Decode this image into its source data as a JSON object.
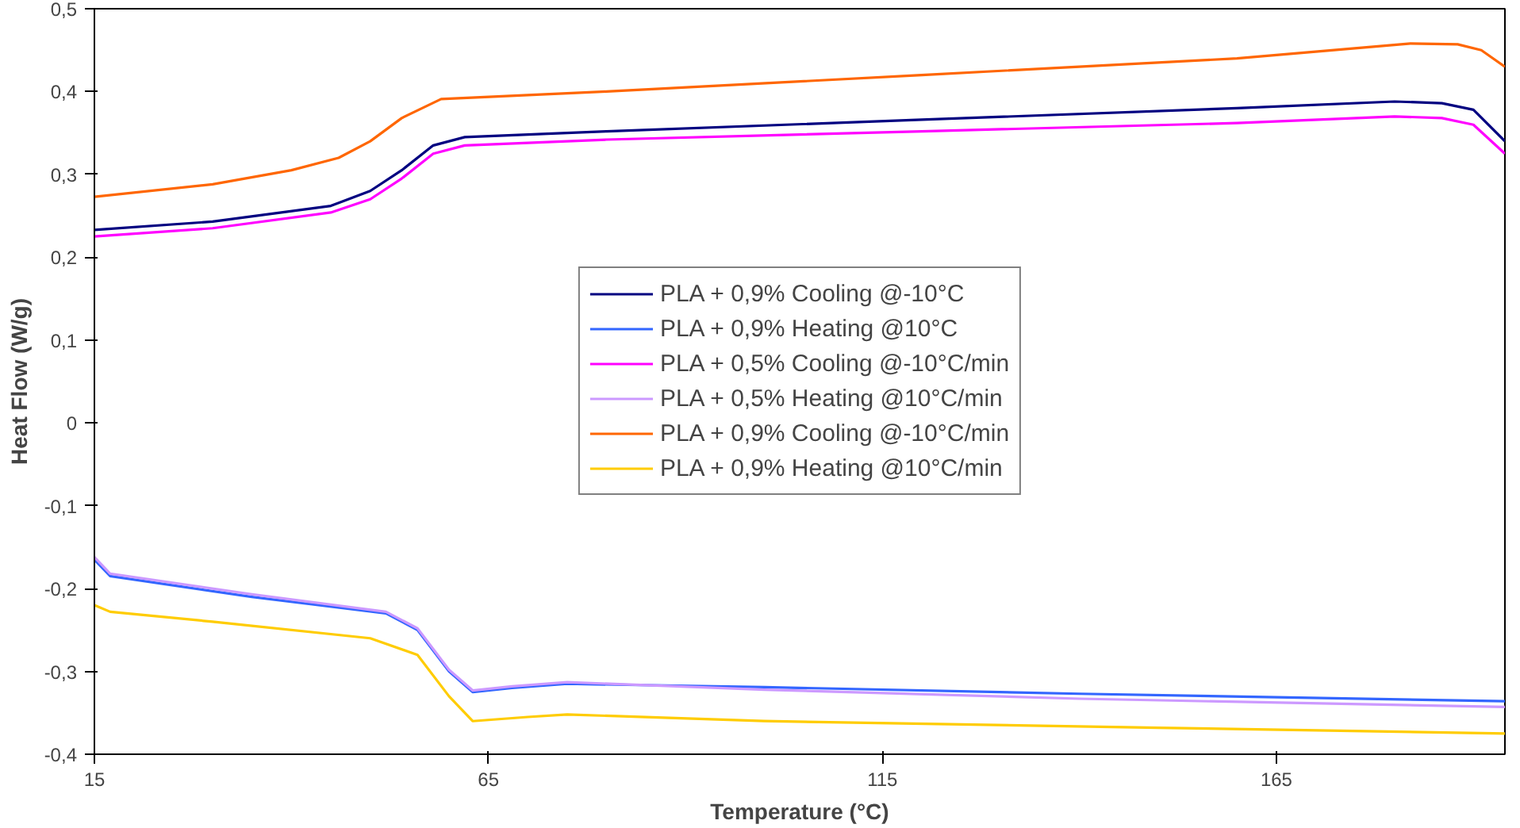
{
  "chart_data": {
    "type": "line",
    "xlabel": "Temperature (°C)",
    "ylabel": "Heat Flow (W/g)",
    "xlim": [
      15,
      194
    ],
    "xticks": [
      15,
      65,
      115,
      165
    ],
    "ylim": [
      -0.4,
      0.5
    ],
    "yticks": [
      {
        "value": -0.4,
        "label": "-0,4"
      },
      {
        "value": -0.3,
        "label": "-0,3"
      },
      {
        "value": -0.2,
        "label": "-0,2"
      },
      {
        "value": -0.1,
        "label": "-0,1"
      },
      {
        "value": 0,
        "label": "0"
      },
      {
        "value": 0.1,
        "label": "0,1"
      },
      {
        "value": 0.2,
        "label": "0,2"
      },
      {
        "value": 0.3,
        "label": "0,3"
      },
      {
        "value": 0.4,
        "label": "0,4"
      },
      {
        "value": 0.5,
        "label": "0,5"
      }
    ],
    "grid": false,
    "legend": "center",
    "marker": "none",
    "line_style": "solid",
    "series": [
      {
        "name": "PLA + 0,9% Cooling @-10°C",
        "color": "#000080",
        "x": [
          15,
          30,
          45,
          50,
          54,
          58,
          62,
          80,
          120,
          160,
          180,
          186,
          190,
          194
        ],
        "values": [
          0.233,
          0.243,
          0.262,
          0.28,
          0.305,
          0.335,
          0.345,
          0.352,
          0.366,
          0.38,
          0.388,
          0.386,
          0.378,
          0.34
        ]
      },
      {
        "name": "PLA + 0,9% Heating @10°C",
        "color": "#3366ff",
        "x": [
          15,
          17,
          35,
          52,
          56,
          60,
          63,
          68,
          75,
          100,
          140,
          194
        ],
        "values": [
          -0.165,
          -0.185,
          -0.21,
          -0.23,
          -0.25,
          -0.3,
          -0.325,
          -0.32,
          -0.315,
          -0.319,
          -0.327,
          -0.336
        ]
      },
      {
        "name": "PLA + 0,5% Cooling @-10°C/min",
        "color": "#ff00ff",
        "x": [
          15,
          30,
          45,
          50,
          54,
          58,
          62,
          80,
          120,
          160,
          180,
          186,
          190,
          194
        ],
        "values": [
          0.225,
          0.235,
          0.254,
          0.27,
          0.295,
          0.325,
          0.335,
          0.342,
          0.352,
          0.362,
          0.37,
          0.368,
          0.36,
          0.325
        ]
      },
      {
        "name": "PLA + 0,5% Heating @10°C/min",
        "color": "#cc99ff",
        "x": [
          15,
          17,
          35,
          52,
          56,
          60,
          63,
          68,
          75,
          100,
          140,
          194
        ],
        "values": [
          -0.162,
          -0.182,
          -0.207,
          -0.228,
          -0.248,
          -0.298,
          -0.323,
          -0.318,
          -0.313,
          -0.322,
          -0.333,
          -0.343
        ]
      },
      {
        "name": "PLA + 0,9% Cooling @-10°C/min",
        "color": "#ff6600",
        "x": [
          15,
          30,
          40,
          46,
          50,
          54,
          59,
          80,
          120,
          160,
          182,
          188,
          191,
          194
        ],
        "values": [
          0.273,
          0.288,
          0.305,
          0.32,
          0.34,
          0.368,
          0.391,
          0.4,
          0.42,
          0.44,
          0.458,
          0.457,
          0.45,
          0.43
        ]
      },
      {
        "name": "PLA + 0,9% Heating @10°C/min",
        "color": "#ffcc00",
        "x": [
          15,
          17,
          30,
          50,
          56,
          60,
          63,
          70,
          75,
          100,
          150,
          194
        ],
        "values": [
          -0.22,
          -0.228,
          -0.24,
          -0.26,
          -0.28,
          -0.33,
          -0.36,
          -0.355,
          -0.352,
          -0.36,
          -0.368,
          -0.375
        ]
      }
    ]
  }
}
